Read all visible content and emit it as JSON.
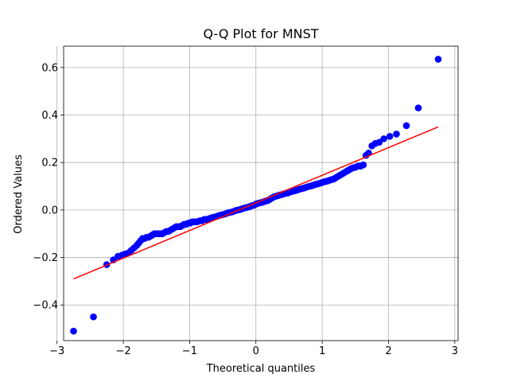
{
  "chart_data": {
    "type": "scatter",
    "title": "Q-Q Plot for MNST",
    "xlabel": "Theoretical quantiles",
    "ylabel": "Ordered Values",
    "xlim": [
      -2.9,
      3.05
    ],
    "ylim": [
      -0.55,
      0.69
    ],
    "xticks": [
      -3,
      -2,
      -1,
      0,
      1,
      2,
      3
    ],
    "xtick_labels": [
      "−3",
      "−2",
      "−1",
      "0",
      "1",
      "2",
      "3"
    ],
    "yticks": [
      -0.4,
      -0.2,
      0.0,
      0.2,
      0.4,
      0.6
    ],
    "ytick_labels": [
      "−0.4",
      "−0.2",
      "0.0",
      "0.2",
      "0.4",
      "0.6"
    ],
    "grid": true,
    "marker_color": "#0000ff",
    "fit_color": "#ff0000",
    "fit_line": {
      "x": [
        -2.75,
        2.75
      ],
      "y": [
        -0.29,
        0.35
      ]
    },
    "points": [
      [
        -2.75,
        -0.51
      ],
      [
        -2.45,
        -0.45
      ],
      [
        -2.25,
        -0.23
      ],
      [
        -2.15,
        -0.21
      ],
      [
        -2.08,
        -0.195
      ],
      [
        -2.02,
        -0.19
      ],
      [
        -1.97,
        -0.185
      ],
      [
        -1.92,
        -0.18
      ],
      [
        -1.88,
        -0.17
      ],
      [
        -1.84,
        -0.16
      ],
      [
        -1.8,
        -0.15
      ],
      [
        -1.77,
        -0.14
      ],
      [
        -1.74,
        -0.13
      ],
      [
        -1.71,
        -0.12
      ],
      [
        -1.68,
        -0.12
      ],
      [
        -1.65,
        -0.115
      ],
      [
        -1.62,
        -0.115
      ],
      [
        -1.59,
        -0.11
      ],
      [
        -1.56,
        -0.105
      ],
      [
        -1.53,
        -0.1
      ],
      [
        -1.5,
        -0.1
      ],
      [
        -1.47,
        -0.1
      ],
      [
        -1.44,
        -0.1
      ],
      [
        -1.41,
        -0.1
      ],
      [
        -1.38,
        -0.095
      ],
      [
        -1.35,
        -0.09
      ],
      [
        -1.32,
        -0.09
      ],
      [
        -1.29,
        -0.085
      ],
      [
        -1.26,
        -0.08
      ],
      [
        -1.23,
        -0.075
      ],
      [
        -1.2,
        -0.07
      ],
      [
        -1.17,
        -0.07
      ],
      [
        -1.14,
        -0.07
      ],
      [
        -1.11,
        -0.065
      ],
      [
        -1.08,
        -0.06
      ],
      [
        -1.05,
        -0.06
      ],
      [
        -1.02,
        -0.055
      ],
      [
        -0.99,
        -0.055
      ],
      [
        -0.96,
        -0.05
      ],
      [
        -0.93,
        -0.05
      ],
      [
        -0.9,
        -0.05
      ],
      [
        -0.87,
        -0.048
      ],
      [
        -0.84,
        -0.045
      ],
      [
        -0.81,
        -0.045
      ],
      [
        -0.78,
        -0.04
      ],
      [
        -0.75,
        -0.04
      ],
      [
        -0.72,
        -0.038
      ],
      [
        -0.69,
        -0.035
      ],
      [
        -0.66,
        -0.032
      ],
      [
        -0.63,
        -0.03
      ],
      [
        -0.6,
        -0.028
      ],
      [
        -0.57,
        -0.025
      ],
      [
        -0.54,
        -0.022
      ],
      [
        -0.51,
        -0.02
      ],
      [
        -0.48,
        -0.018
      ],
      [
        -0.45,
        -0.015
      ],
      [
        -0.42,
        -0.012
      ],
      [
        -0.39,
        -0.01
      ],
      [
        -0.36,
        -0.008
      ],
      [
        -0.33,
        -0.005
      ],
      [
        -0.3,
        -0.002
      ],
      [
        -0.27,
        0.0
      ],
      [
        -0.24,
        0.002
      ],
      [
        -0.21,
        0.005
      ],
      [
        -0.18,
        0.008
      ],
      [
        -0.15,
        0.01
      ],
      [
        -0.12,
        0.012
      ],
      [
        -0.09,
        0.015
      ],
      [
        -0.06,
        0.018
      ],
      [
        -0.03,
        0.02
      ],
      [
        0.0,
        0.025
      ],
      [
        0.03,
        0.028
      ],
      [
        0.06,
        0.03
      ],
      [
        0.09,
        0.032
      ],
      [
        0.12,
        0.035
      ],
      [
        0.15,
        0.038
      ],
      [
        0.18,
        0.04
      ],
      [
        0.21,
        0.045
      ],
      [
        0.24,
        0.05
      ],
      [
        0.27,
        0.055
      ],
      [
        0.3,
        0.058
      ],
      [
        0.33,
        0.06
      ],
      [
        0.36,
        0.063
      ],
      [
        0.39,
        0.065
      ],
      [
        0.42,
        0.068
      ],
      [
        0.45,
        0.07
      ],
      [
        0.48,
        0.072
      ],
      [
        0.51,
        0.075
      ],
      [
        0.54,
        0.078
      ],
      [
        0.57,
        0.08
      ],
      [
        0.6,
        0.082
      ],
      [
        0.63,
        0.085
      ],
      [
        0.66,
        0.088
      ],
      [
        0.69,
        0.09
      ],
      [
        0.72,
        0.092
      ],
      [
        0.75,
        0.095
      ],
      [
        0.78,
        0.098
      ],
      [
        0.81,
        0.1
      ],
      [
        0.84,
        0.102
      ],
      [
        0.87,
        0.105
      ],
      [
        0.9,
        0.108
      ],
      [
        0.93,
        0.11
      ],
      [
        0.96,
        0.112
      ],
      [
        0.99,
        0.115
      ],
      [
        1.02,
        0.118
      ],
      [
        1.05,
        0.12
      ],
      [
        1.08,
        0.122
      ],
      [
        1.11,
        0.125
      ],
      [
        1.14,
        0.128
      ],
      [
        1.17,
        0.13
      ],
      [
        1.2,
        0.135
      ],
      [
        1.23,
        0.14
      ],
      [
        1.26,
        0.145
      ],
      [
        1.29,
        0.15
      ],
      [
        1.32,
        0.155
      ],
      [
        1.35,
        0.16
      ],
      [
        1.38,
        0.165
      ],
      [
        1.41,
        0.17
      ],
      [
        1.44,
        0.175
      ],
      [
        1.47,
        0.178
      ],
      [
        1.5,
        0.18
      ],
      [
        1.54,
        0.185
      ],
      [
        1.58,
        0.185
      ],
      [
        1.62,
        0.19
      ],
      [
        1.66,
        0.23
      ],
      [
        1.7,
        0.24
      ],
      [
        1.75,
        0.27
      ],
      [
        1.8,
        0.28
      ],
      [
        1.86,
        0.285
      ],
      [
        1.93,
        0.3
      ],
      [
        2.02,
        0.31
      ],
      [
        2.12,
        0.32
      ],
      [
        2.27,
        0.355
      ],
      [
        2.45,
        0.43
      ],
      [
        2.75,
        0.635
      ]
    ]
  }
}
